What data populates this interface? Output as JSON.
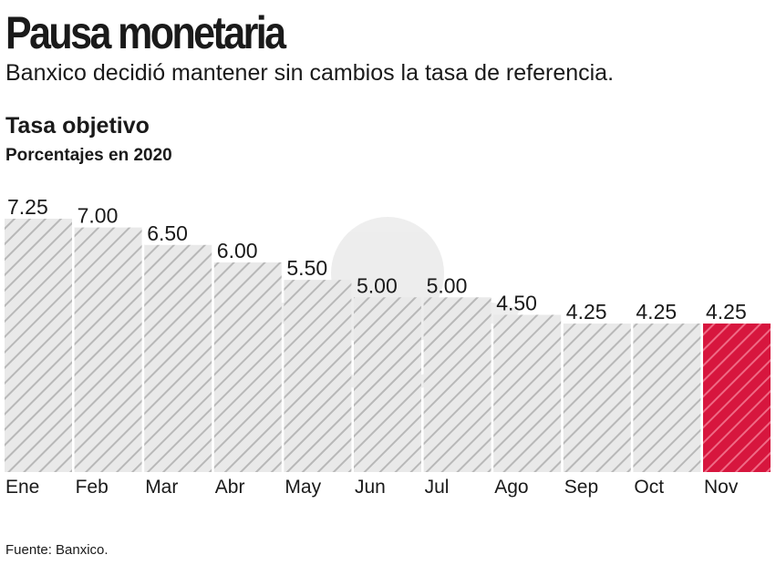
{
  "header": {
    "title": "Pausa monetaria",
    "subtitle": "Banxico decidió mantener sin cambios la tasa de referencia."
  },
  "chart_data": {
    "type": "bar",
    "title": "Tasa objetivo",
    "subtitle": "Porcentajes en 2020",
    "categories": [
      "Ene",
      "Feb",
      "Mar",
      "Abr",
      "May",
      "Jun",
      "Jul",
      "Ago",
      "Sep",
      "Oct",
      "Nov"
    ],
    "values": [
      7.25,
      7.0,
      6.5,
      6.0,
      5.5,
      5.0,
      5.0,
      4.5,
      4.25,
      4.25,
      4.25
    ],
    "value_labels": [
      "7.25",
      "7.00",
      "6.50",
      "6.00",
      "5.50",
      "5.00",
      "5.00",
      "4.50",
      "4.25",
      "4.25",
      "4.25"
    ],
    "highlight_index": 10,
    "ylim": [
      0,
      7.25
    ],
    "grid": false,
    "colors": {
      "bar_fill": "#e9e9e9",
      "bar_stripe": "#b8b8b8",
      "highlight_fill": "#d7163e",
      "highlight_stripe": "#ef6a85"
    }
  },
  "footer": {
    "source": "Fuente: Banxico."
  }
}
